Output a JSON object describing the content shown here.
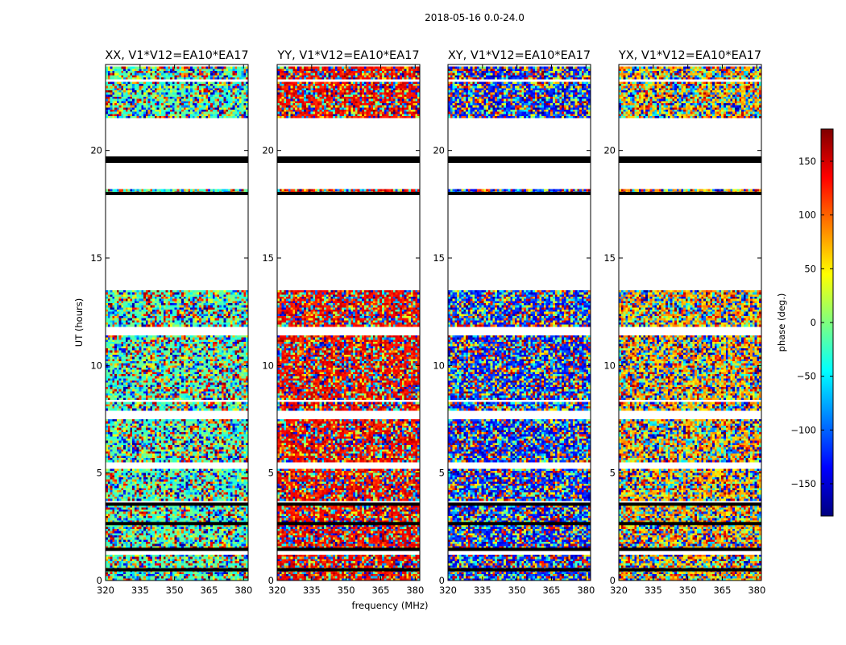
{
  "chart_data": {
    "type": "heatmap",
    "suptitle": "2018-05-16 0.0-24.0",
    "xlabel": "frequency (MHz)",
    "ylabel": "UT (hours)",
    "xlim": [
      320,
      382
    ],
    "ylim": [
      0,
      24
    ],
    "xticks": [
      320,
      335,
      350,
      365,
      380
    ],
    "yticks": [
      0,
      5,
      10,
      15,
      20
    ],
    "colorbar": {
      "label": "phase (deg.)",
      "range": [
        -180,
        180
      ],
      "ticks": [
        -150,
        -100,
        -50,
        0,
        50,
        100,
        150
      ],
      "colormap": "jet",
      "colors": [
        "#00007f",
        "#0000ff",
        "#007fff",
        "#00ffff",
        "#7fff7f",
        "#ffff00",
        "#ff7f00",
        "#ff0000",
        "#7f0000"
      ]
    },
    "panels": [
      {
        "title": "XX, V1*V12=EA10*EA17",
        "bias": 0.45,
        "bias_strength": 0.35
      },
      {
        "title": "YY, V1*V12=EA10*EA17",
        "bias": 0.88,
        "bias_strength": 0.45
      },
      {
        "title": "XY, V1*V12=EA10*EA17",
        "bias": 0.15,
        "bias_strength": 0.3
      },
      {
        "title": "YX, V1*V12=EA10*EA17",
        "bias": 0.7,
        "bias_strength": 0.25
      }
    ],
    "data_blocks_ut": [
      [
        0.0,
        1.2
      ],
      [
        1.5,
        3.5
      ],
      [
        3.65,
        5.2
      ],
      [
        5.5,
        7.55
      ],
      [
        7.9,
        8.3
      ],
      [
        8.45,
        11.4
      ],
      [
        11.8,
        13.45
      ],
      [
        18.0,
        18.15
      ],
      [
        21.5,
        23.2
      ],
      [
        23.35,
        23.9
      ]
    ],
    "flag_lines_ut": [
      2.65,
      3.55,
      18.0,
      19.5,
      19.65,
      0.5,
      1.45
    ]
  }
}
